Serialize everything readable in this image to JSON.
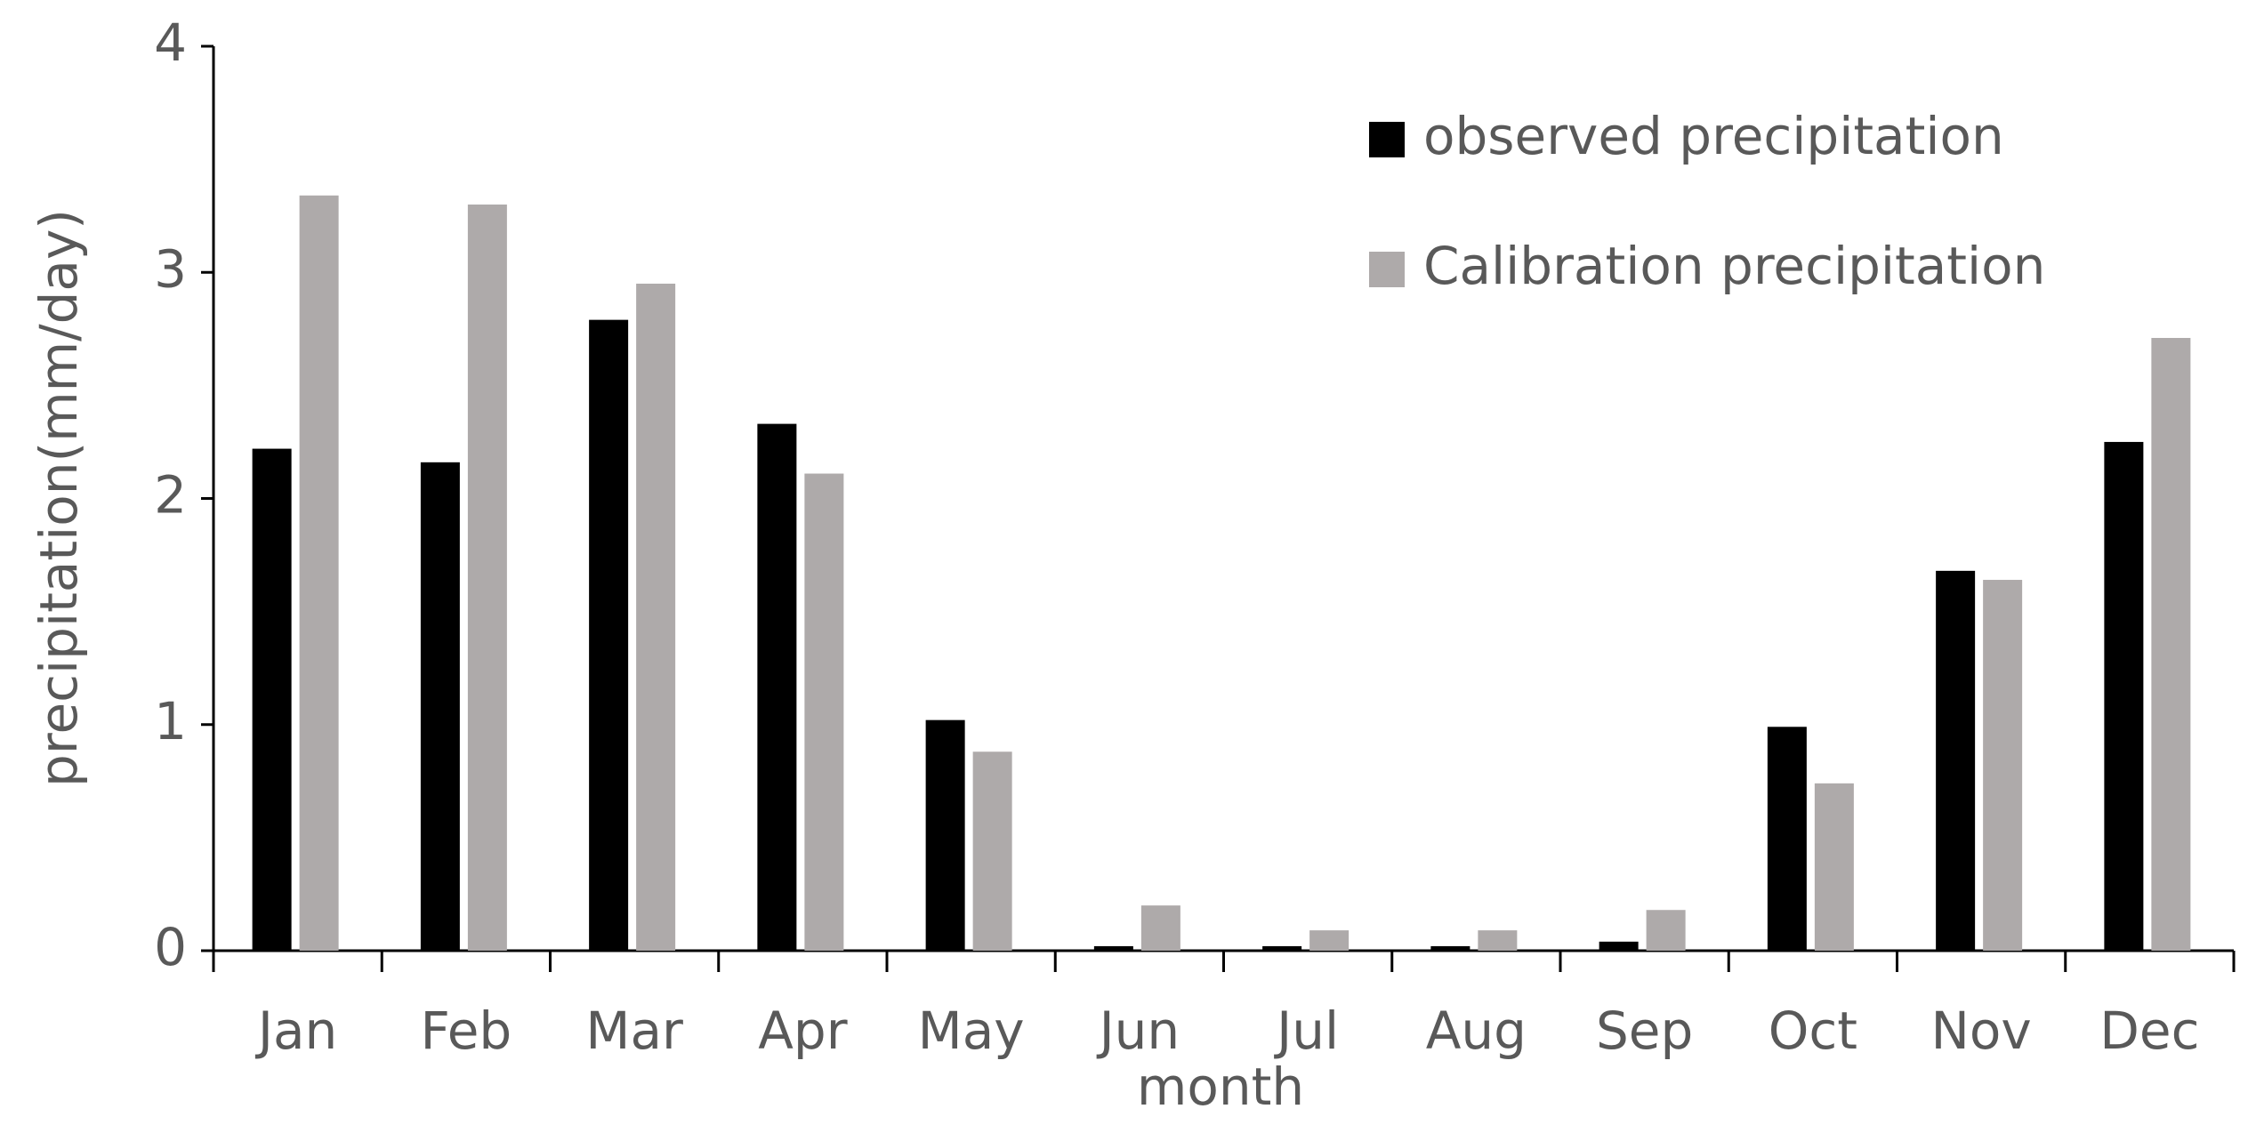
{
  "chart_data": {
    "type": "bar",
    "x_label": "month",
    "y_label": "precipitation(mm/day)",
    "categories": [
      "Jan",
      "Feb",
      "Mar",
      "Apr",
      "May",
      "Jun",
      "Jul",
      "Aug",
      "Sep",
      "Oct",
      "Nov",
      "Dec"
    ],
    "series": [
      {
        "name": "observed precipitation",
        "color": "#000000",
        "values": [
          2.22,
          2.16,
          2.79,
          2.33,
          1.02,
          0.02,
          0.02,
          0.02,
          0.04,
          0.99,
          1.68,
          2.25
        ]
      },
      {
        "name": "Calibration precipitation",
        "color": "#aeaaaa",
        "values": [
          3.34,
          3.3,
          2.95,
          2.11,
          0.88,
          0.2,
          0.09,
          0.09,
          0.18,
          0.74,
          1.64,
          2.71
        ]
      }
    ],
    "ylim": [
      0,
      4
    ],
    "yticks": [
      0,
      1,
      2,
      3,
      4
    ],
    "grid": false,
    "legend": "top-right"
  }
}
